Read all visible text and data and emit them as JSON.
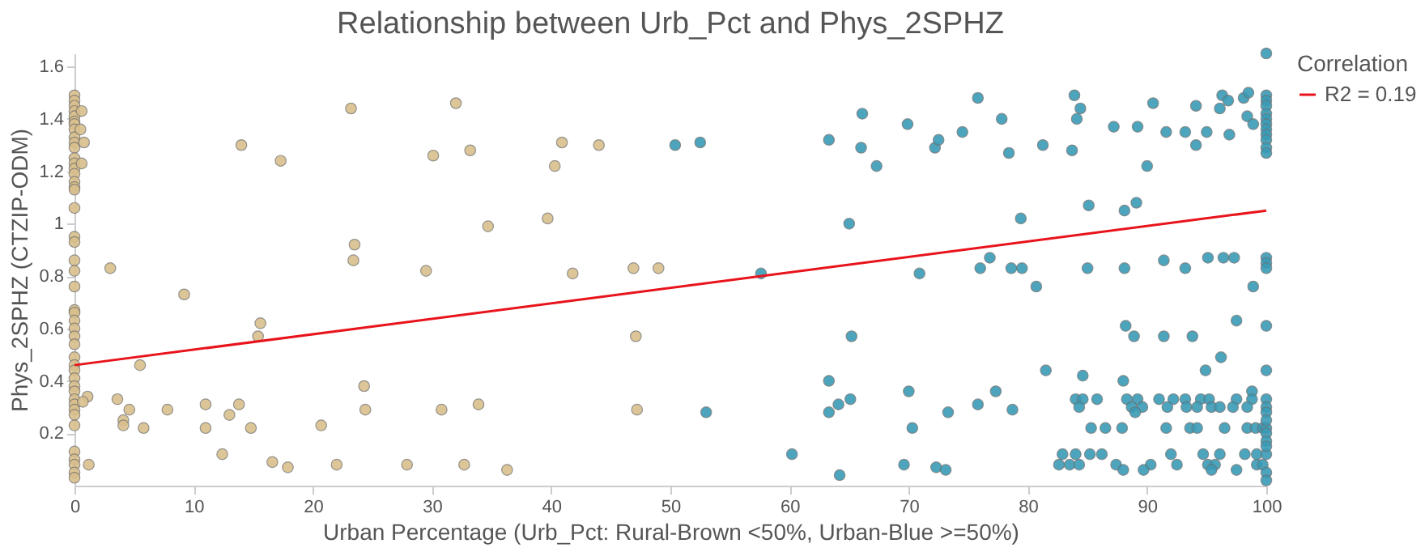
{
  "chart_data": {
    "type": "scatter",
    "title": "Relationship between Urb_Pct and Phys_2SPHZ",
    "xlabel": "Urban Percentage (Urb_Pct: Rural-Brown <50%, Urban-Blue >=50%)",
    "ylabel": "Phys_2SPHZ (CTZIP-ODM)",
    "legend_title": "Correlation",
    "legend": "right",
    "marker": "circle",
    "grid": false,
    "xlim": [
      0,
      100
    ],
    "xticks": [
      0,
      10,
      20,
      30,
      40,
      50,
      60,
      70,
      80,
      90,
      100
    ],
    "ylim": [
      0,
      1.65
    ],
    "yticks": [
      0.2,
      0.4,
      0.6,
      0.8,
      1,
      1.2,
      1.4,
      1.6
    ],
    "series": [
      {
        "color": "#d9bf8c",
        "x": [
          0,
          0,
          0,
          0,
          0,
          0,
          0,
          0,
          0,
          0,
          0,
          0,
          0,
          0,
          0,
          0,
          0,
          0,
          0,
          0,
          0,
          0,
          0,
          0,
          0,
          0,
          0,
          0,
          0,
          0,
          0,
          0,
          0,
          0,
          0,
          0,
          0,
          0,
          0,
          0,
          0,
          0,
          0,
          0,
          0,
          0,
          0.6,
          0.5,
          0.8,
          0.6,
          1.1,
          0.7,
          1.2,
          3.0,
          3.6,
          4.1,
          4.1,
          4.6,
          5.5,
          5.8,
          7.8,
          9.2,
          11.0,
          11.0,
          12.4,
          13.0,
          13.8,
          14.0,
          14.8,
          15.4,
          15.6,
          16.6,
          17.3,
          17.9,
          20.7,
          22.0,
          23.2,
          23.5,
          23.4,
          24.3,
          24.4,
          27.9,
          32.0,
          30.1,
          33.2,
          29.5,
          30.8,
          33.9,
          32.7,
          36.3,
          34.7,
          39.7,
          40.3,
          40.9,
          44.0,
          41.8,
          46.9,
          49.0,
          47.1,
          47.2
        ],
        "values": [
          1.49,
          1.47,
          1.45,
          1.43,
          1.41,
          1.39,
          1.38,
          1.36,
          1.33,
          1.31,
          1.29,
          1.25,
          1.23,
          1.21,
          1.19,
          1.16,
          1.14,
          1.13,
          1.06,
          0.95,
          0.93,
          0.86,
          0.82,
          0.76,
          0.67,
          0.66,
          0.63,
          0.6,
          0.57,
          0.54,
          0.49,
          0.46,
          0.44,
          0.41,
          0.38,
          0.36,
          0.33,
          0.31,
          0.29,
          0.27,
          0.23,
          0.13,
          0.1,
          0.08,
          0.05,
          0.03,
          1.43,
          1.36,
          1.31,
          1.23,
          0.34,
          0.32,
          0.08,
          0.83,
          0.33,
          0.25,
          0.23,
          0.29,
          0.46,
          0.22,
          0.29,
          0.73,
          0.31,
          0.22,
          0.12,
          0.27,
          0.31,
          1.3,
          0.22,
          0.57,
          0.62,
          0.09,
          1.24,
          0.07,
          0.23,
          0.08,
          1.44,
          0.92,
          0.86,
          0.38,
          0.29,
          0.08,
          1.46,
          1.26,
          1.28,
          0.82,
          0.29,
          0.31,
          0.08,
          0.06,
          0.99,
          1.02,
          1.22,
          1.31,
          1.3,
          0.81,
          0.83,
          0.83,
          0.57,
          0.29
        ]
      },
      {
        "color": "#3a9bb6",
        "x": [
          50.4,
          52.5,
          53.0,
          57.6,
          63.3,
          66.1,
          66.0,
          67.3,
          65.0,
          69.9,
          72.2,
          72.5,
          74.5,
          75.8,
          77.8,
          78.4,
          79.4,
          70.9,
          76.0,
          76.8,
          78.6,
          79.5,
          65.2,
          63.3,
          63.3,
          64.1,
          65.1,
          60.2,
          64.2,
          70.0,
          70.3,
          73.3,
          69.6,
          72.3,
          73.1,
          75.8,
          77.3,
          78.7,
          83.9,
          84.4,
          84.1,
          81.25,
          83.7,
          87.2,
          89.2,
          90.5,
          90.0,
          91.6,
          93.2,
          94.1,
          94.1,
          95.0,
          96.1,
          96.3,
          96.8,
          96.9,
          98.1,
          98.5,
          98.4,
          98.9,
          100,
          100,
          100,
          100,
          100,
          100,
          100,
          100,
          100,
          100,
          100,
          100,
          85.1,
          88.1,
          89.1,
          80.7,
          85.0,
          88.1,
          91.4,
          93.2,
          95.1,
          96.4,
          97.3,
          98.9,
          100,
          100,
          100,
          88.2,
          88.9,
          91.4,
          93.8,
          97.5,
          100,
          96.2,
          94.9,
          100,
          81.5,
          84.6,
          88.0,
          98.8,
          84.0,
          84.6,
          85.8,
          88.3,
          89.2,
          91.0,
          92.2,
          93.2,
          94.5,
          95.2,
          97.5,
          98.8,
          100,
          84.3,
          88.7,
          89.6,
          91.7,
          93.3,
          94.2,
          95.4,
          96.1,
          97.2,
          98.4,
          100,
          89.0,
          85.3,
          86.5,
          87.9,
          91.6,
          93.6,
          94.2,
          96.5,
          98.4,
          99.1,
          99.7,
          100,
          82.9,
          84.0,
          85.2,
          86.2,
          92.0,
          94.7,
          96.1,
          98.2,
          99.2,
          100,
          82.6,
          83.5,
          84.3,
          87.4,
          90.3,
          92.5,
          95.1,
          95.7,
          99.2,
          99.7,
          88.0,
          89.7,
          95.4,
          97.5,
          100,
          100,
          100,
          100,
          100,
          100,
          100
        ],
        "values": [
          1.3,
          1.31,
          0.28,
          0.81,
          1.32,
          1.42,
          1.29,
          1.22,
          1.0,
          1.38,
          1.29,
          1.32,
          1.35,
          1.48,
          1.4,
          1.27,
          1.02,
          0.81,
          0.83,
          0.87,
          0.83,
          0.83,
          0.57,
          0.4,
          0.28,
          0.31,
          0.33,
          0.12,
          0.04,
          0.36,
          0.22,
          0.28,
          0.08,
          0.07,
          0.06,
          0.31,
          0.36,
          0.29,
          1.49,
          1.44,
          1.4,
          1.3,
          1.28,
          1.37,
          1.37,
          1.46,
          1.22,
          1.35,
          1.35,
          1.3,
          1.45,
          1.35,
          1.44,
          1.49,
          1.47,
          1.34,
          1.48,
          1.5,
          1.41,
          1.38,
          1.65,
          1.49,
          1.47,
          1.45,
          1.42,
          1.4,
          1.38,
          1.36,
          1.34,
          1.32,
          1.29,
          1.27,
          1.07,
          1.05,
          1.08,
          0.76,
          0.83,
          0.83,
          0.86,
          0.83,
          0.87,
          0.87,
          0.87,
          0.76,
          0.87,
          0.85,
          0.83,
          0.61,
          0.57,
          0.57,
          0.57,
          0.63,
          0.61,
          0.49,
          0.44,
          0.44,
          0.44,
          0.42,
          0.4,
          0.36,
          0.33,
          0.33,
          0.33,
          0.33,
          0.33,
          0.33,
          0.33,
          0.33,
          0.33,
          0.33,
          0.33,
          0.33,
          0.33,
          0.3,
          0.3,
          0.3,
          0.3,
          0.3,
          0.3,
          0.3,
          0.3,
          0.3,
          0.3,
          0.3,
          0.28,
          0.22,
          0.22,
          0.22,
          0.22,
          0.22,
          0.22,
          0.22,
          0.22,
          0.22,
          0.22,
          0.22,
          0.12,
          0.12,
          0.12,
          0.12,
          0.12,
          0.12,
          0.12,
          0.12,
          0.12,
          0.12,
          0.08,
          0.08,
          0.08,
          0.08,
          0.08,
          0.08,
          0.08,
          0.08,
          0.08,
          0.08,
          0.06,
          0.06,
          0.06,
          0.06,
          0.28,
          0.25,
          0.2,
          0.17,
          0.15,
          0.05,
          0.02
        ]
      },
      {
        "type": "line",
        "marker": "none",
        "name": "R2 = 0.19",
        "color": "#e8131b",
        "x": [
          0,
          100
        ],
        "values": [
          0.46,
          1.05
        ]
      }
    ]
  }
}
